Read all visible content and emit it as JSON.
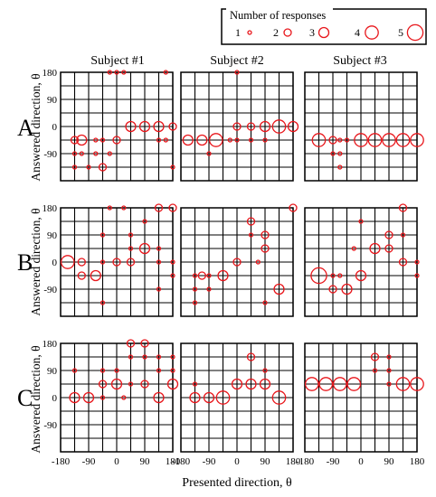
{
  "figure": {
    "legend_title": "Number of responses",
    "subjects": [
      "Subject #1",
      "Subject #2",
      "Subject #3"
    ],
    "row_labels": [
      "A",
      "B",
      "C"
    ],
    "ylabel": "Answered direction, θ",
    "xlabel": "Presented direction, θ",
    "marker_color": "#e8161b"
  },
  "chart_data": {
    "type": "scatter",
    "encoding": "bubble size = number of responses",
    "xlabel": "Presented direction, θ",
    "ylabel": "Answered direction, θ",
    "xlim": [
      -180,
      180
    ],
    "ylim": [
      -180,
      180
    ],
    "x_ticks": [
      -180,
      -90,
      0,
      90,
      180
    ],
    "y_ticks": [
      180,
      90,
      0,
      -90
    ],
    "grid": true,
    "legend": {
      "title": "Number of responses",
      "placement": "top-right",
      "entries": [
        1,
        2,
        3,
        4,
        5
      ]
    },
    "panels": [
      {
        "row": "A",
        "subject": "Subject #1",
        "points": [
          [
            -135,
            -45,
            2
          ],
          [
            -135,
            -90,
            1
          ],
          [
            -135,
            -135,
            1
          ],
          [
            -112.5,
            -45,
            3
          ],
          [
            -112.5,
            -90,
            1
          ],
          [
            -90,
            -135,
            1
          ],
          [
            -67.5,
            -45,
            1
          ],
          [
            -67.5,
            -90,
            1
          ],
          [
            -45,
            -45,
            1
          ],
          [
            -45,
            -135,
            2
          ],
          [
            -22.5,
            -90,
            1
          ],
          [
            0,
            -45,
            2
          ],
          [
            -22.5,
            180,
            1
          ],
          [
            0,
            180,
            1
          ],
          [
            22.5,
            180,
            1
          ],
          [
            45,
            0,
            3
          ],
          [
            90,
            0,
            3
          ],
          [
            135,
            0,
            3
          ],
          [
            135,
            -45,
            1
          ],
          [
            157.5,
            180,
            1
          ],
          [
            157.5,
            -45,
            1
          ],
          [
            180,
            0,
            2
          ],
          [
            180,
            -135,
            1
          ]
        ]
      },
      {
        "row": "A",
        "subject": "Subject #2",
        "points": [
          [
            -157.5,
            -45,
            3
          ],
          [
            -112.5,
            -45,
            3
          ],
          [
            -90,
            -90,
            1
          ],
          [
            -67.5,
            -45,
            4
          ],
          [
            -22.5,
            -45,
            1
          ],
          [
            0,
            0,
            2
          ],
          [
            0,
            -45,
            1
          ],
          [
            0,
            180,
            1
          ],
          [
            45,
            0,
            2
          ],
          [
            45,
            -45,
            1
          ],
          [
            90,
            0,
            3
          ],
          [
            90,
            -45,
            1
          ],
          [
            135,
            0,
            4
          ],
          [
            180,
            0,
            3
          ]
        ]
      },
      {
        "row": "A",
        "subject": "Subject #3",
        "points": [
          [
            -135,
            -45,
            4
          ],
          [
            -90,
            -45,
            2
          ],
          [
            -90,
            -90,
            1
          ],
          [
            -67.5,
            -45,
            1
          ],
          [
            -67.5,
            -90,
            1
          ],
          [
            -67.5,
            -135,
            1
          ],
          [
            -45,
            -45,
            1
          ],
          [
            0,
            -45,
            4
          ],
          [
            45,
            -45,
            4
          ],
          [
            90,
            -45,
            4
          ],
          [
            135,
            -45,
            4
          ],
          [
            180,
            -45,
            4
          ]
        ]
      },
      {
        "row": "B",
        "subject": "Subject #1",
        "points": [
          [
            -157.5,
            0,
            4
          ],
          [
            -112.5,
            0,
            2
          ],
          [
            -112.5,
            -45,
            2
          ],
          [
            -67.5,
            -45,
            3
          ],
          [
            -45,
            90,
            1
          ],
          [
            -45,
            0,
            1
          ],
          [
            -45,
            -135,
            1
          ],
          [
            -22.5,
            180,
            1
          ],
          [
            0,
            0,
            2
          ],
          [
            22.5,
            180,
            1
          ],
          [
            45,
            0,
            2
          ],
          [
            45,
            45,
            1
          ],
          [
            45,
            90,
            1
          ],
          [
            90,
            45,
            3
          ],
          [
            90,
            135,
            1
          ],
          [
            135,
            0,
            1
          ],
          [
            135,
            45,
            1
          ],
          [
            135,
            180,
            2
          ],
          [
            135,
            -90,
            1
          ],
          [
            180,
            0,
            1
          ],
          [
            180,
            180,
            2
          ],
          [
            180,
            -45,
            1
          ]
        ]
      },
      {
        "row": "B",
        "subject": "Subject #2",
        "points": [
          [
            -135,
            -45,
            1
          ],
          [
            -135,
            -90,
            1
          ],
          [
            -135,
            -135,
            1
          ],
          [
            -112.5,
            -45,
            2
          ],
          [
            -90,
            -45,
            1
          ],
          [
            -90,
            -90,
            1
          ],
          [
            -45,
            -45,
            3
          ],
          [
            0,
            0,
            2
          ],
          [
            45,
            90,
            1
          ],
          [
            45,
            135,
            2
          ],
          [
            67.5,
            0,
            1
          ],
          [
            90,
            90,
            2
          ],
          [
            90,
            45,
            2
          ],
          [
            90,
            -135,
            1
          ],
          [
            135,
            -90,
            3
          ],
          [
            180,
            180,
            2
          ]
        ]
      },
      {
        "row": "B",
        "subject": "Subject #3",
        "points": [
          [
            -135,
            -45,
            5
          ],
          [
            -90,
            -45,
            1
          ],
          [
            -90,
            -90,
            2
          ],
          [
            -67.5,
            -45,
            1
          ],
          [
            -45,
            -90,
            3
          ],
          [
            -22.5,
            45,
            1
          ],
          [
            0,
            -45,
            3
          ],
          [
            0,
            135,
            1
          ],
          [
            45,
            45,
            3
          ],
          [
            90,
            45,
            2
          ],
          [
            90,
            90,
            2
          ],
          [
            135,
            0,
            2
          ],
          [
            135,
            90,
            1
          ],
          [
            135,
            180,
            2
          ],
          [
            180,
            0,
            1
          ],
          [
            180,
            -45,
            1
          ]
        ]
      },
      {
        "row": "C",
        "subject": "Subject #1",
        "points": [
          [
            -135,
            0,
            3
          ],
          [
            -135,
            90,
            1
          ],
          [
            -90,
            0,
            3
          ],
          [
            -45,
            0,
            1
          ],
          [
            -45,
            45,
            2
          ],
          [
            -45,
            90,
            1
          ],
          [
            0,
            45,
            3
          ],
          [
            0,
            90,
            1
          ],
          [
            22.5,
            0,
            1
          ],
          [
            45,
            45,
            1
          ],
          [
            45,
            135,
            1
          ],
          [
            45,
            180,
            2
          ],
          [
            90,
            45,
            2
          ],
          [
            90,
            135,
            1
          ],
          [
            90,
            180,
            2
          ],
          [
            135,
            0,
            3
          ],
          [
            135,
            90,
            1
          ],
          [
            135,
            135,
            1
          ],
          [
            180,
            45,
            3
          ],
          [
            180,
            90,
            1
          ],
          [
            180,
            135,
            1
          ]
        ]
      },
      {
        "row": "C",
        "subject": "Subject #2",
        "points": [
          [
            -135,
            0,
            3
          ],
          [
            -135,
            45,
            1
          ],
          [
            -90,
            0,
            3
          ],
          [
            -45,
            0,
            4
          ],
          [
            0,
            45,
            3
          ],
          [
            45,
            45,
            3
          ],
          [
            45,
            135,
            2
          ],
          [
            90,
            45,
            3
          ],
          [
            90,
            90,
            1
          ],
          [
            135,
            0,
            4
          ]
        ]
      },
      {
        "row": "C",
        "subject": "Subject #3",
        "points": [
          [
            -157.5,
            45,
            4
          ],
          [
            -112.5,
            45,
            4
          ],
          [
            -67.5,
            45,
            4
          ],
          [
            -22.5,
            45,
            4
          ],
          [
            45,
            135,
            2
          ],
          [
            45,
            90,
            1
          ],
          [
            90,
            45,
            1
          ],
          [
            90,
            90,
            1
          ],
          [
            90,
            135,
            1
          ],
          [
            135,
            45,
            4
          ],
          [
            180,
            45,
            4
          ]
        ]
      }
    ]
  }
}
